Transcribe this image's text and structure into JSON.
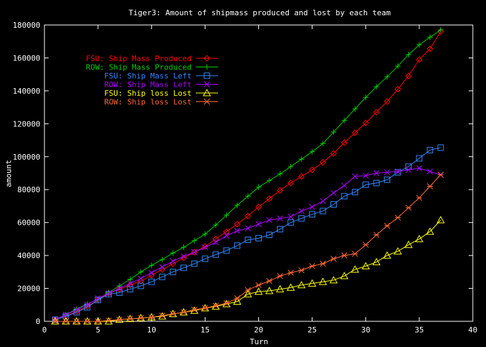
{
  "colors": {
    "background": "#000000",
    "axis": "#ffffff",
    "text": "#ffffff"
  },
  "chart_data": {
    "type": "line",
    "title": "Tiger3: Amount of shipmass produced and lost by each team",
    "xlabel": "Turn",
    "ylabel": "amount",
    "xlim": [
      0,
      40
    ],
    "ylim": [
      0,
      180000
    ],
    "xticks": [
      "0",
      "5",
      "10",
      "15",
      "20",
      "25",
      "30",
      "35",
      "40"
    ],
    "yticks": [
      "0",
      "20000",
      "40000",
      "60000",
      "80000",
      "100000",
      "120000",
      "140000",
      "160000",
      "180000"
    ],
    "grid": false,
    "legend_position": "top-left",
    "x": [
      1,
      2,
      3,
      4,
      5,
      6,
      7,
      8,
      9,
      10,
      11,
      12,
      13,
      14,
      15,
      16,
      17,
      18,
      19,
      20,
      21,
      22,
      23,
      24,
      25,
      26,
      27,
      28,
      29,
      30,
      31,
      32,
      33,
      34,
      35,
      36,
      37
    ],
    "series": [
      {
        "name": "FSU: Ship Mass Produced",
        "color": "#ff0000",
        "marker": "diamond",
        "values": [
          1000,
          3000,
          6000,
          9000,
          13000,
          17000,
          19500,
          22000,
          24500,
          28000,
          31500,
          35000,
          38500,
          42000,
          45500,
          50000,
          54500,
          59000,
          64000,
          69500,
          74500,
          79500,
          84000,
          88000,
          92000,
          96500,
          102000,
          108500,
          114500,
          120500,
          127000,
          133500,
          141000,
          149000,
          159000,
          165500,
          176000
        ]
      },
      {
        "name": "ROW: Ship Mass Produced",
        "color": "#00cc00",
        "marker": "plus",
        "values": [
          1000,
          4000,
          7500,
          10500,
          13500,
          17500,
          21500,
          25500,
          30000,
          34000,
          37500,
          41500,
          45000,
          49000,
          53000,
          58500,
          64500,
          70500,
          76000,
          81500,
          85500,
          89500,
          94000,
          98500,
          103000,
          108000,
          115000,
          122000,
          129000,
          136000,
          142500,
          148500,
          155000,
          162000,
          168000,
          172500,
          177000
        ]
      },
      {
        "name": "FSU: Ship Mass Left",
        "color": "#3388ff",
        "marker": "square",
        "values": [
          1000,
          3000,
          5500,
          8500,
          13000,
          16500,
          17500,
          19500,
          21500,
          24000,
          27000,
          30000,
          32500,
          35000,
          38000,
          40500,
          43000,
          46000,
          49500,
          50500,
          52500,
          56000,
          60000,
          62500,
          65000,
          67000,
          71000,
          76000,
          78500,
          83000,
          84000,
          86000,
          90500,
          94000,
          99000,
          104000,
          105500
        ]
      },
      {
        "name": "ROW: Ship Mass Left",
        "color": "#aa00ff",
        "marker": "x",
        "values": [
          1000,
          4000,
          7000,
          10000,
          14000,
          17000,
          20000,
          23000,
          26000,
          29500,
          33000,
          36500,
          39500,
          42000,
          45000,
          48000,
          52000,
          55000,
          56500,
          59000,
          61500,
          62500,
          63500,
          67000,
          69500,
          73000,
          78000,
          82500,
          88000,
          88500,
          90000,
          90500,
          91000,
          92000,
          93000,
          91000,
          89000
        ]
      },
      {
        "name": "FSU: Ship loss Lost",
        "color": "#ffff00",
        "marker": "triangle",
        "values": [
          0,
          0,
          0,
          0,
          0,
          0,
          1000,
          1500,
          2000,
          2500,
          3000,
          4500,
          5500,
          6500,
          8000,
          9000,
          10500,
          12000,
          16500,
          18000,
          18500,
          19500,
          20500,
          22000,
          23000,
          24000,
          25000,
          27500,
          31500,
          33500,
          36000,
          40000,
          42500,
          46500,
          50000,
          54500,
          61500
        ]
      },
      {
        "name": "ROW: Ship loss Lost",
        "color": "#ff6633",
        "marker": "asterisk",
        "values": [
          0,
          0,
          0,
          0,
          0,
          500,
          1000,
          1500,
          2000,
          2500,
          3500,
          4500,
          5500,
          7000,
          8000,
          9500,
          11000,
          14000,
          19000,
          22000,
          24500,
          27500,
          29500,
          31000,
          33500,
          35000,
          38000,
          40000,
          41000,
          46500,
          52500,
          58000,
          63000,
          69000,
          75000,
          82000,
          89000
        ]
      }
    ]
  }
}
